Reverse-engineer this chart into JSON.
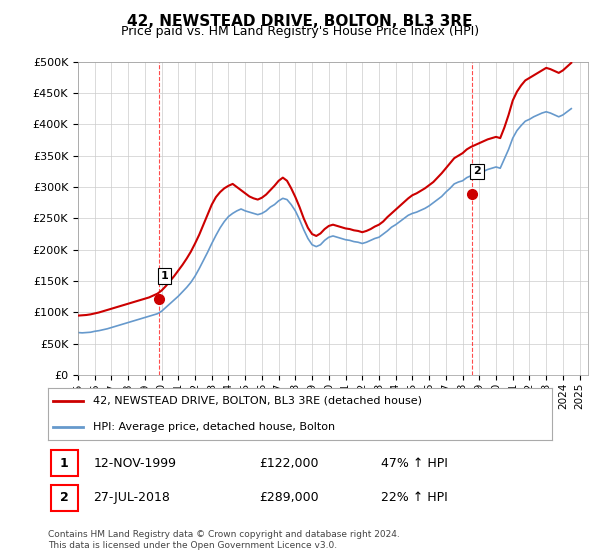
{
  "title": "42, NEWSTEAD DRIVE, BOLTON, BL3 3RE",
  "subtitle": "Price paid vs. HM Land Registry's House Price Index (HPI)",
  "legend_line1": "42, NEWSTEAD DRIVE, BOLTON, BL3 3RE (detached house)",
  "legend_line2": "HPI: Average price, detached house, Bolton",
  "footer": "Contains HM Land Registry data © Crown copyright and database right 2024.\nThis data is licensed under the Open Government Licence v3.0.",
  "transaction1_label": "1",
  "transaction1_date": "12-NOV-1999",
  "transaction1_price": "£122,000",
  "transaction1_hpi": "47% ↑ HPI",
  "transaction2_label": "2",
  "transaction2_date": "27-JUL-2018",
  "transaction2_price": "£289,000",
  "transaction2_hpi": "22% ↑ HPI",
  "hpi_color": "#6699cc",
  "price_color": "#cc0000",
  "marker_color": "#cc0000",
  "background_color": "#ffffff",
  "grid_color": "#cccccc",
  "ylim": [
    0,
    500000
  ],
  "yticks": [
    0,
    50000,
    100000,
    150000,
    200000,
    250000,
    300000,
    350000,
    400000,
    450000,
    500000
  ],
  "hpi_years": [
    1995.0,
    1995.25,
    1995.5,
    1995.75,
    1996.0,
    1996.25,
    1996.5,
    1996.75,
    1997.0,
    1997.25,
    1997.5,
    1997.75,
    1998.0,
    1998.25,
    1998.5,
    1998.75,
    1999.0,
    1999.25,
    1999.5,
    1999.75,
    2000.0,
    2000.25,
    2000.5,
    2000.75,
    2001.0,
    2001.25,
    2001.5,
    2001.75,
    2002.0,
    2002.25,
    2002.5,
    2002.75,
    2003.0,
    2003.25,
    2003.5,
    2003.75,
    2004.0,
    2004.25,
    2004.5,
    2004.75,
    2005.0,
    2005.25,
    2005.5,
    2005.75,
    2006.0,
    2006.25,
    2006.5,
    2006.75,
    2007.0,
    2007.25,
    2007.5,
    2007.75,
    2008.0,
    2008.25,
    2008.5,
    2008.75,
    2009.0,
    2009.25,
    2009.5,
    2009.75,
    2010.0,
    2010.25,
    2010.5,
    2010.75,
    2011.0,
    2011.25,
    2011.5,
    2011.75,
    2012.0,
    2012.25,
    2012.5,
    2012.75,
    2013.0,
    2013.25,
    2013.5,
    2013.75,
    2014.0,
    2014.25,
    2014.5,
    2014.75,
    2015.0,
    2015.25,
    2015.5,
    2015.75,
    2016.0,
    2016.25,
    2016.5,
    2016.75,
    2017.0,
    2017.25,
    2017.5,
    2017.75,
    2018.0,
    2018.25,
    2018.5,
    2018.75,
    2019.0,
    2019.25,
    2019.5,
    2019.75,
    2020.0,
    2020.25,
    2020.5,
    2020.75,
    2021.0,
    2021.25,
    2021.5,
    2021.75,
    2022.0,
    2022.25,
    2022.5,
    2022.75,
    2023.0,
    2023.25,
    2023.5,
    2023.75,
    2024.0,
    2024.25,
    2024.5
  ],
  "hpi_values": [
    68000,
    67500,
    68000,
    68500,
    70000,
    71000,
    72500,
    74000,
    76000,
    78000,
    80000,
    82000,
    84000,
    86000,
    88000,
    90000,
    92000,
    94000,
    96000,
    98000,
    102000,
    108000,
    114000,
    120000,
    126000,
    133000,
    140000,
    148000,
    158000,
    170000,
    183000,
    196000,
    210000,
    223000,
    235000,
    245000,
    253000,
    258000,
    262000,
    265000,
    262000,
    260000,
    258000,
    256000,
    258000,
    262000,
    268000,
    272000,
    278000,
    282000,
    280000,
    272000,
    262000,
    248000,
    232000,
    218000,
    208000,
    205000,
    208000,
    215000,
    220000,
    222000,
    220000,
    218000,
    216000,
    215000,
    213000,
    212000,
    210000,
    212000,
    215000,
    218000,
    220000,
    225000,
    230000,
    236000,
    240000,
    245000,
    250000,
    255000,
    258000,
    260000,
    263000,
    266000,
    270000,
    275000,
    280000,
    285000,
    292000,
    298000,
    305000,
    308000,
    310000,
    315000,
    318000,
    320000,
    322000,
    325000,
    328000,
    330000,
    332000,
    330000,
    345000,
    360000,
    378000,
    390000,
    398000,
    405000,
    408000,
    412000,
    415000,
    418000,
    420000,
    418000,
    415000,
    412000,
    415000,
    420000,
    425000
  ],
  "price_years": [
    1995.0,
    1995.25,
    1995.5,
    1995.75,
    1996.0,
    1996.25,
    1996.5,
    1996.75,
    1997.0,
    1997.25,
    1997.5,
    1997.75,
    1998.0,
    1998.25,
    1998.5,
    1998.75,
    1999.0,
    1999.25,
    1999.5,
    1999.75,
    2000.0,
    2000.25,
    2000.5,
    2000.75,
    2001.0,
    2001.25,
    2001.5,
    2001.75,
    2002.0,
    2002.25,
    2002.5,
    2002.75,
    2003.0,
    2003.25,
    2003.5,
    2003.75,
    2004.0,
    2004.25,
    2004.5,
    2004.75,
    2005.0,
    2005.25,
    2005.5,
    2005.75,
    2006.0,
    2006.25,
    2006.5,
    2006.75,
    2007.0,
    2007.25,
    2007.5,
    2007.75,
    2008.0,
    2008.25,
    2008.5,
    2008.75,
    2009.0,
    2009.25,
    2009.5,
    2009.75,
    2010.0,
    2010.25,
    2010.5,
    2010.75,
    2011.0,
    2011.25,
    2011.5,
    2011.75,
    2012.0,
    2012.25,
    2012.5,
    2012.75,
    2013.0,
    2013.25,
    2013.5,
    2013.75,
    2014.0,
    2014.25,
    2014.5,
    2014.75,
    2015.0,
    2015.25,
    2015.5,
    2015.75,
    2016.0,
    2016.25,
    2016.5,
    2016.75,
    2017.0,
    2017.25,
    2017.5,
    2017.75,
    2018.0,
    2018.25,
    2018.5,
    2018.75,
    2019.0,
    2019.25,
    2019.5,
    2019.75,
    2020.0,
    2020.25,
    2020.5,
    2020.75,
    2021.0,
    2021.25,
    2021.5,
    2021.75,
    2022.0,
    2022.25,
    2022.5,
    2022.75,
    2023.0,
    2023.25,
    2023.5,
    2023.75,
    2024.0,
    2024.25,
    2024.5
  ],
  "price_values": [
    95000,
    95500,
    96000,
    97000,
    98500,
    100000,
    102000,
    104000,
    106000,
    108000,
    110000,
    112000,
    114000,
    116000,
    118000,
    120000,
    122000,
    124000,
    127000,
    130000,
    135000,
    142000,
    150000,
    158000,
    167000,
    176000,
    186000,
    197000,
    210000,
    224000,
    240000,
    256000,
    272000,
    284000,
    292000,
    298000,
    302000,
    305000,
    300000,
    295000,
    290000,
    285000,
    282000,
    280000,
    283000,
    288000,
    295000,
    302000,
    310000,
    315000,
    310000,
    298000,
    284000,
    268000,
    250000,
    235000,
    225000,
    222000,
    226000,
    233000,
    238000,
    240000,
    238000,
    236000,
    234000,
    233000,
    231000,
    230000,
    228000,
    230000,
    233000,
    237000,
    240000,
    245000,
    252000,
    258000,
    264000,
    270000,
    276000,
    282000,
    287000,
    290000,
    294000,
    298000,
    303000,
    308000,
    315000,
    322000,
    330000,
    338000,
    346000,
    350000,
    354000,
    360000,
    364000,
    367000,
    370000,
    373000,
    376000,
    378000,
    380000,
    378000,
    395000,
    415000,
    438000,
    452000,
    462000,
    470000,
    474000,
    478000,
    482000,
    486000,
    490000,
    488000,
    485000,
    482000,
    486000,
    492000,
    498000
  ],
  "transaction1_x": 1999.87,
  "transaction1_y": 122000,
  "transaction2_x": 2018.57,
  "transaction2_y": 289000,
  "xtick_years": [
    1995,
    1996,
    1997,
    1998,
    1999,
    2000,
    2001,
    2002,
    2003,
    2004,
    2005,
    2006,
    2007,
    2008,
    2009,
    2010,
    2011,
    2012,
    2013,
    2014,
    2015,
    2016,
    2017,
    2018,
    2019,
    2020,
    2021,
    2022,
    2023,
    2024,
    2025
  ]
}
